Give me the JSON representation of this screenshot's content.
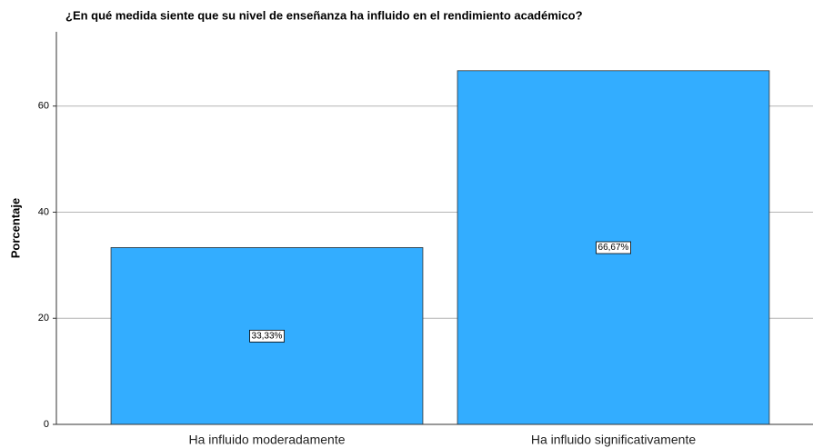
{
  "chart_data": {
    "type": "bar",
    "title": "¿En qué medida siente que su nivel de enseñanza ha influido en el rendimiento académico?",
    "y_label": "Porcentaje",
    "categories": [
      "Ha influido moderadamente",
      "Ha influido significativamente"
    ],
    "values": [
      33.33,
      66.67
    ],
    "value_labels": [
      "33,33%",
      "66,67%"
    ],
    "color": "#33adff",
    "ylim": [
      0,
      74
    ],
    "yticks": [
      0,
      20,
      40,
      60
    ],
    "grid": true
  }
}
